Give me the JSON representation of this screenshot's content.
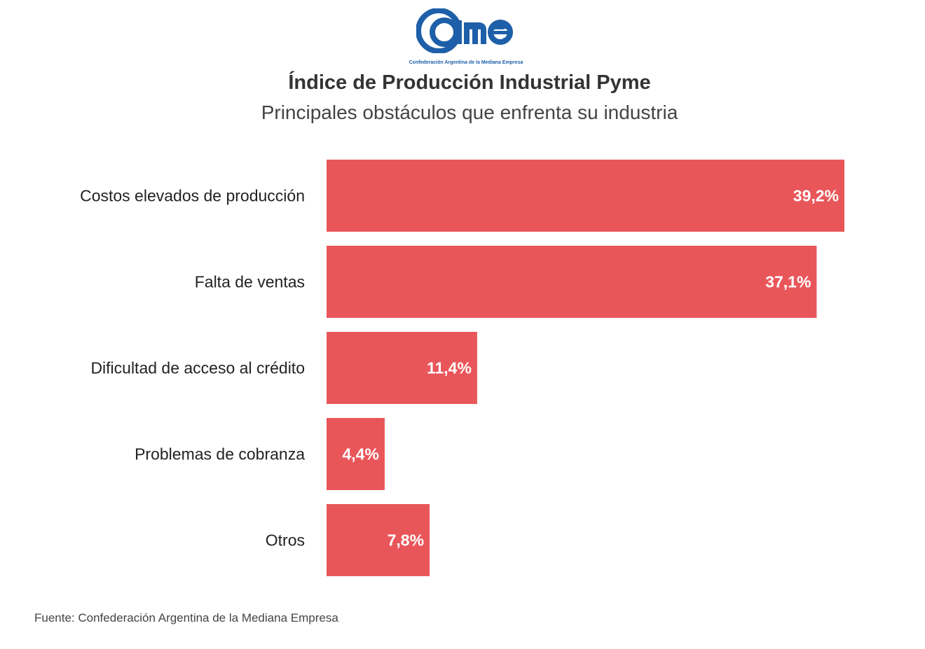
{
  "header": {
    "logo_text": "came",
    "logo_tagline": "Confederación Argentina de la Mediana Empresa",
    "brand_color": "#1d5fa8"
  },
  "chart_data": {
    "type": "bar",
    "orientation": "horizontal",
    "title": "Índice de Producción Industrial Pyme",
    "subtitle": "Principales obstáculos que enfrenta su industria",
    "categories": [
      "Costos elevados de producción",
      "Falta de ventas",
      "Dificultad de acceso al crédito",
      "Problemas de cobranza",
      "Otros"
    ],
    "values": [
      39.2,
      37.1,
      11.4,
      4.4,
      7.8
    ],
    "value_labels": [
      "39,2%",
      "37,1%",
      "11,4%",
      "4,4%",
      "7,8%"
    ],
    "unit": "%",
    "xlim": [
      0,
      39.2
    ],
    "grid": false,
    "legend": "none",
    "bar_color": "#e9565a",
    "source": "Fuente: Confederación Argentina de la Mediana Empresa"
  }
}
